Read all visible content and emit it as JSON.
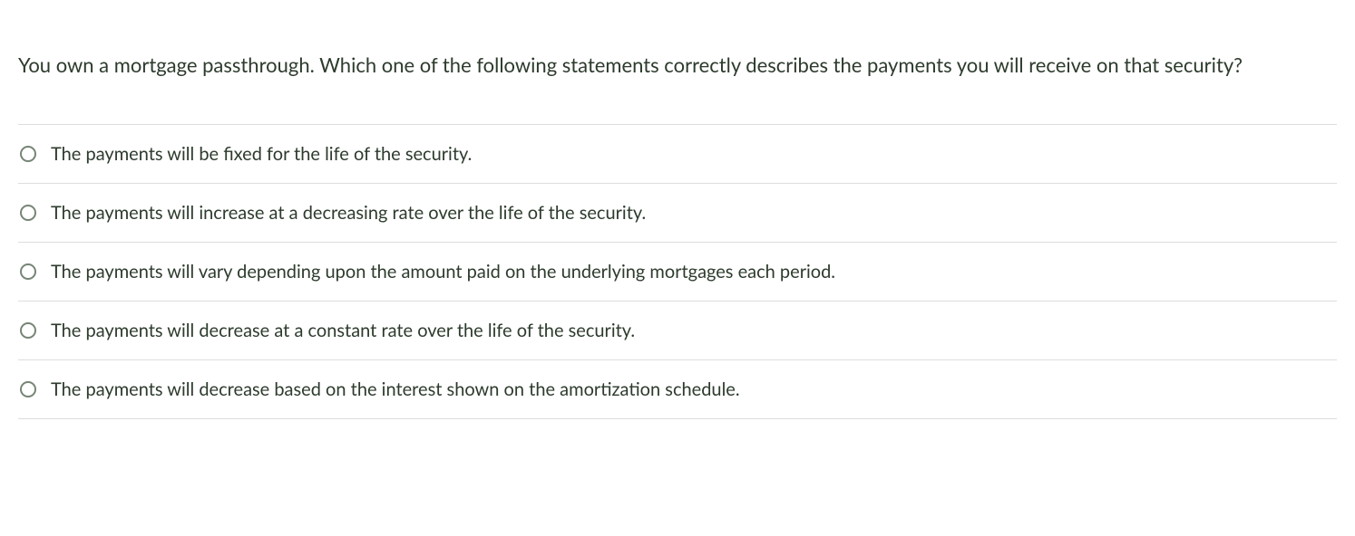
{
  "question": {
    "text": "You own a mortgage passthrough. Which one of the following statements correctly describes the payments you will receive on that security?",
    "text_color": "#2d3b2d",
    "font_size": 22
  },
  "options": [
    {
      "label": "The payments will be fixed for the life of the security.",
      "selected": false
    },
    {
      "label": "The payments will increase at a decreasing rate over the life of the security.",
      "selected": false
    },
    {
      "label": "The payments will vary depending upon the amount paid on the underlying mortgages each period.",
      "selected": false
    },
    {
      "label": "The payments will decrease at a constant rate over the life of the security.",
      "selected": false
    },
    {
      "label": "The payments will decrease based on the interest shown on the amortization schedule.",
      "selected": false
    }
  ],
  "styling": {
    "background_color": "#ffffff",
    "border_color": "#dddddd",
    "radio_border_color": "#768576",
    "option_text_color": "#2d3b2d",
    "option_font_size": 20
  }
}
